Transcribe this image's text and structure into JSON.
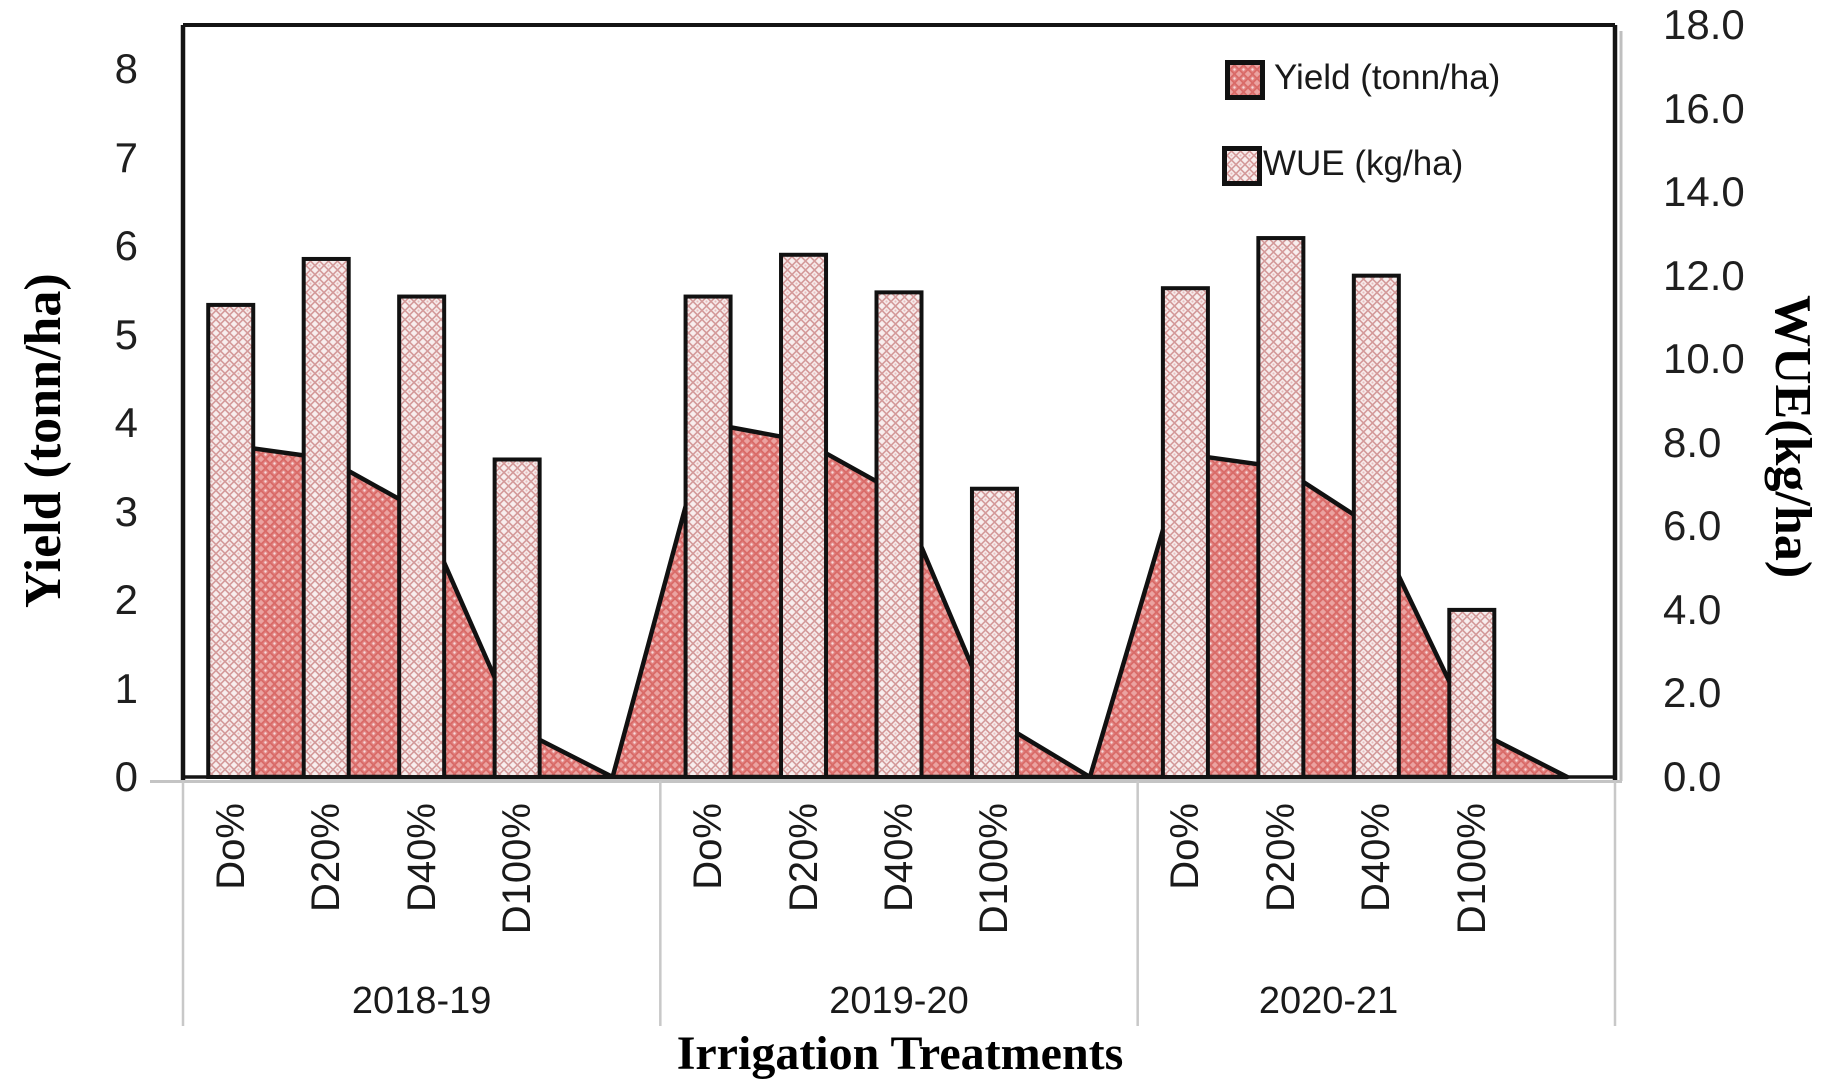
{
  "legend": {
    "items": [
      {
        "label": "Yield (tonn/ha)",
        "swatch": "area"
      },
      {
        "label": "WUE (kg/ha)",
        "swatch": "bar"
      }
    ]
  },
  "colors": {
    "area_fill": "#eba3a1",
    "area_diamond": "#e28583",
    "area_diamond_stroke": "#d96b68",
    "area_dot": "#f7dada",
    "bar_fill": "#f8eeee",
    "bar_diamond_stroke": "#d49a9a",
    "bar_dot": "#e7bcbc",
    "outline": "#111111",
    "separator": "#c8c8c8",
    "text": "#1f1f1f"
  },
  "chart_data": {
    "type": "combo-bar-area",
    "categories": [
      "Do%",
      "D20%",
      "D40%",
      "D100%"
    ],
    "groups": [
      "2018-19",
      "2019-20",
      "2020-21"
    ],
    "series": [
      {
        "name": "Yield (tonn/ha)",
        "type": "area",
        "axis": "left",
        "values": [
          [
            3.75,
            3.6,
            3.0,
            0.55
          ],
          [
            4.0,
            3.8,
            3.2,
            0.65
          ],
          [
            3.65,
            3.5,
            2.8,
            0.55
          ]
        ]
      },
      {
        "name": "WUE (kg/ha)",
        "type": "bar",
        "axis": "right",
        "values": [
          [
            11.3,
            12.4,
            11.5,
            7.6
          ],
          [
            11.5,
            12.5,
            11.6,
            6.9
          ],
          [
            11.7,
            12.9,
            12.0,
            4.0
          ]
        ]
      }
    ],
    "left_axis": {
      "label": "Yield (tonn/ha)",
      "min": 0,
      "max": 8.5,
      "ticks": [
        "0",
        "1",
        "2",
        "3",
        "4",
        "5",
        "6",
        "7",
        "8"
      ]
    },
    "right_axis": {
      "label": "WUE(kg/ha)",
      "min": 0,
      "max": 18,
      "ticks": [
        "0.0",
        "2.0",
        "4.0",
        "6.0",
        "8.0",
        "10.0",
        "12.0",
        "14.0",
        "16.0",
        "18.0"
      ]
    },
    "xlabel": "Irrigation Treatments",
    "layout": {
      "grid": false,
      "legend_position": "top-right",
      "blank_category_between_groups": true,
      "area_dips_to_zero_between_groups": true
    }
  }
}
